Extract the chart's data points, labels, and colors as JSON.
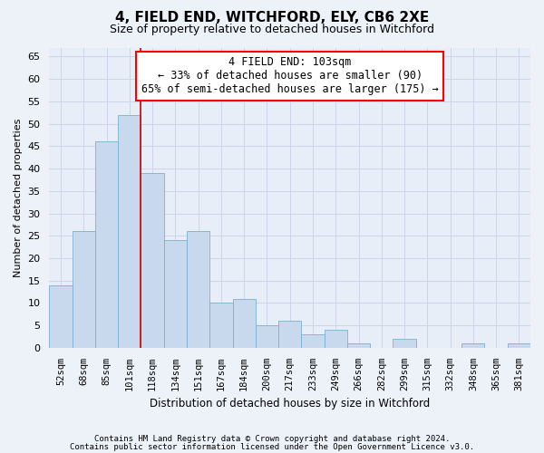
{
  "title": "4, FIELD END, WITCHFORD, ELY, CB6 2XE",
  "subtitle": "Size of property relative to detached houses in Witchford",
  "xlabel": "Distribution of detached houses by size in Witchford",
  "ylabel": "Number of detached properties",
  "bar_color": "#c8d9ed",
  "bar_edge_color": "#7aafd4",
  "categories": [
    "52sqm",
    "68sqm",
    "85sqm",
    "101sqm",
    "118sqm",
    "134sqm",
    "151sqm",
    "167sqm",
    "184sqm",
    "200sqm",
    "217sqm",
    "233sqm",
    "249sqm",
    "266sqm",
    "282sqm",
    "299sqm",
    "315sqm",
    "332sqm",
    "348sqm",
    "365sqm",
    "381sqm"
  ],
  "values": [
    14,
    26,
    46,
    52,
    39,
    24,
    26,
    10,
    11,
    5,
    6,
    3,
    4,
    1,
    0,
    2,
    0,
    0,
    1,
    0,
    1
  ],
  "ylim": [
    0,
    67
  ],
  "yticks": [
    0,
    5,
    10,
    15,
    20,
    25,
    30,
    35,
    40,
    45,
    50,
    55,
    60,
    65
  ],
  "red_line_x": 3.5,
  "property_line_label": "4 FIELD END: 103sqm",
  "annotation_line1": "← 33% of detached houses are smaller (90)",
  "annotation_line2": "65% of semi-detached houses are larger (175) →",
  "grid_color": "#cdd6e8",
  "background_color": "#e8eef8",
  "fig_background_color": "#edf1f8",
  "footer1": "Contains HM Land Registry data © Crown copyright and database right 2024.",
  "footer2": "Contains public sector information licensed under the Open Government Licence v3.0."
}
